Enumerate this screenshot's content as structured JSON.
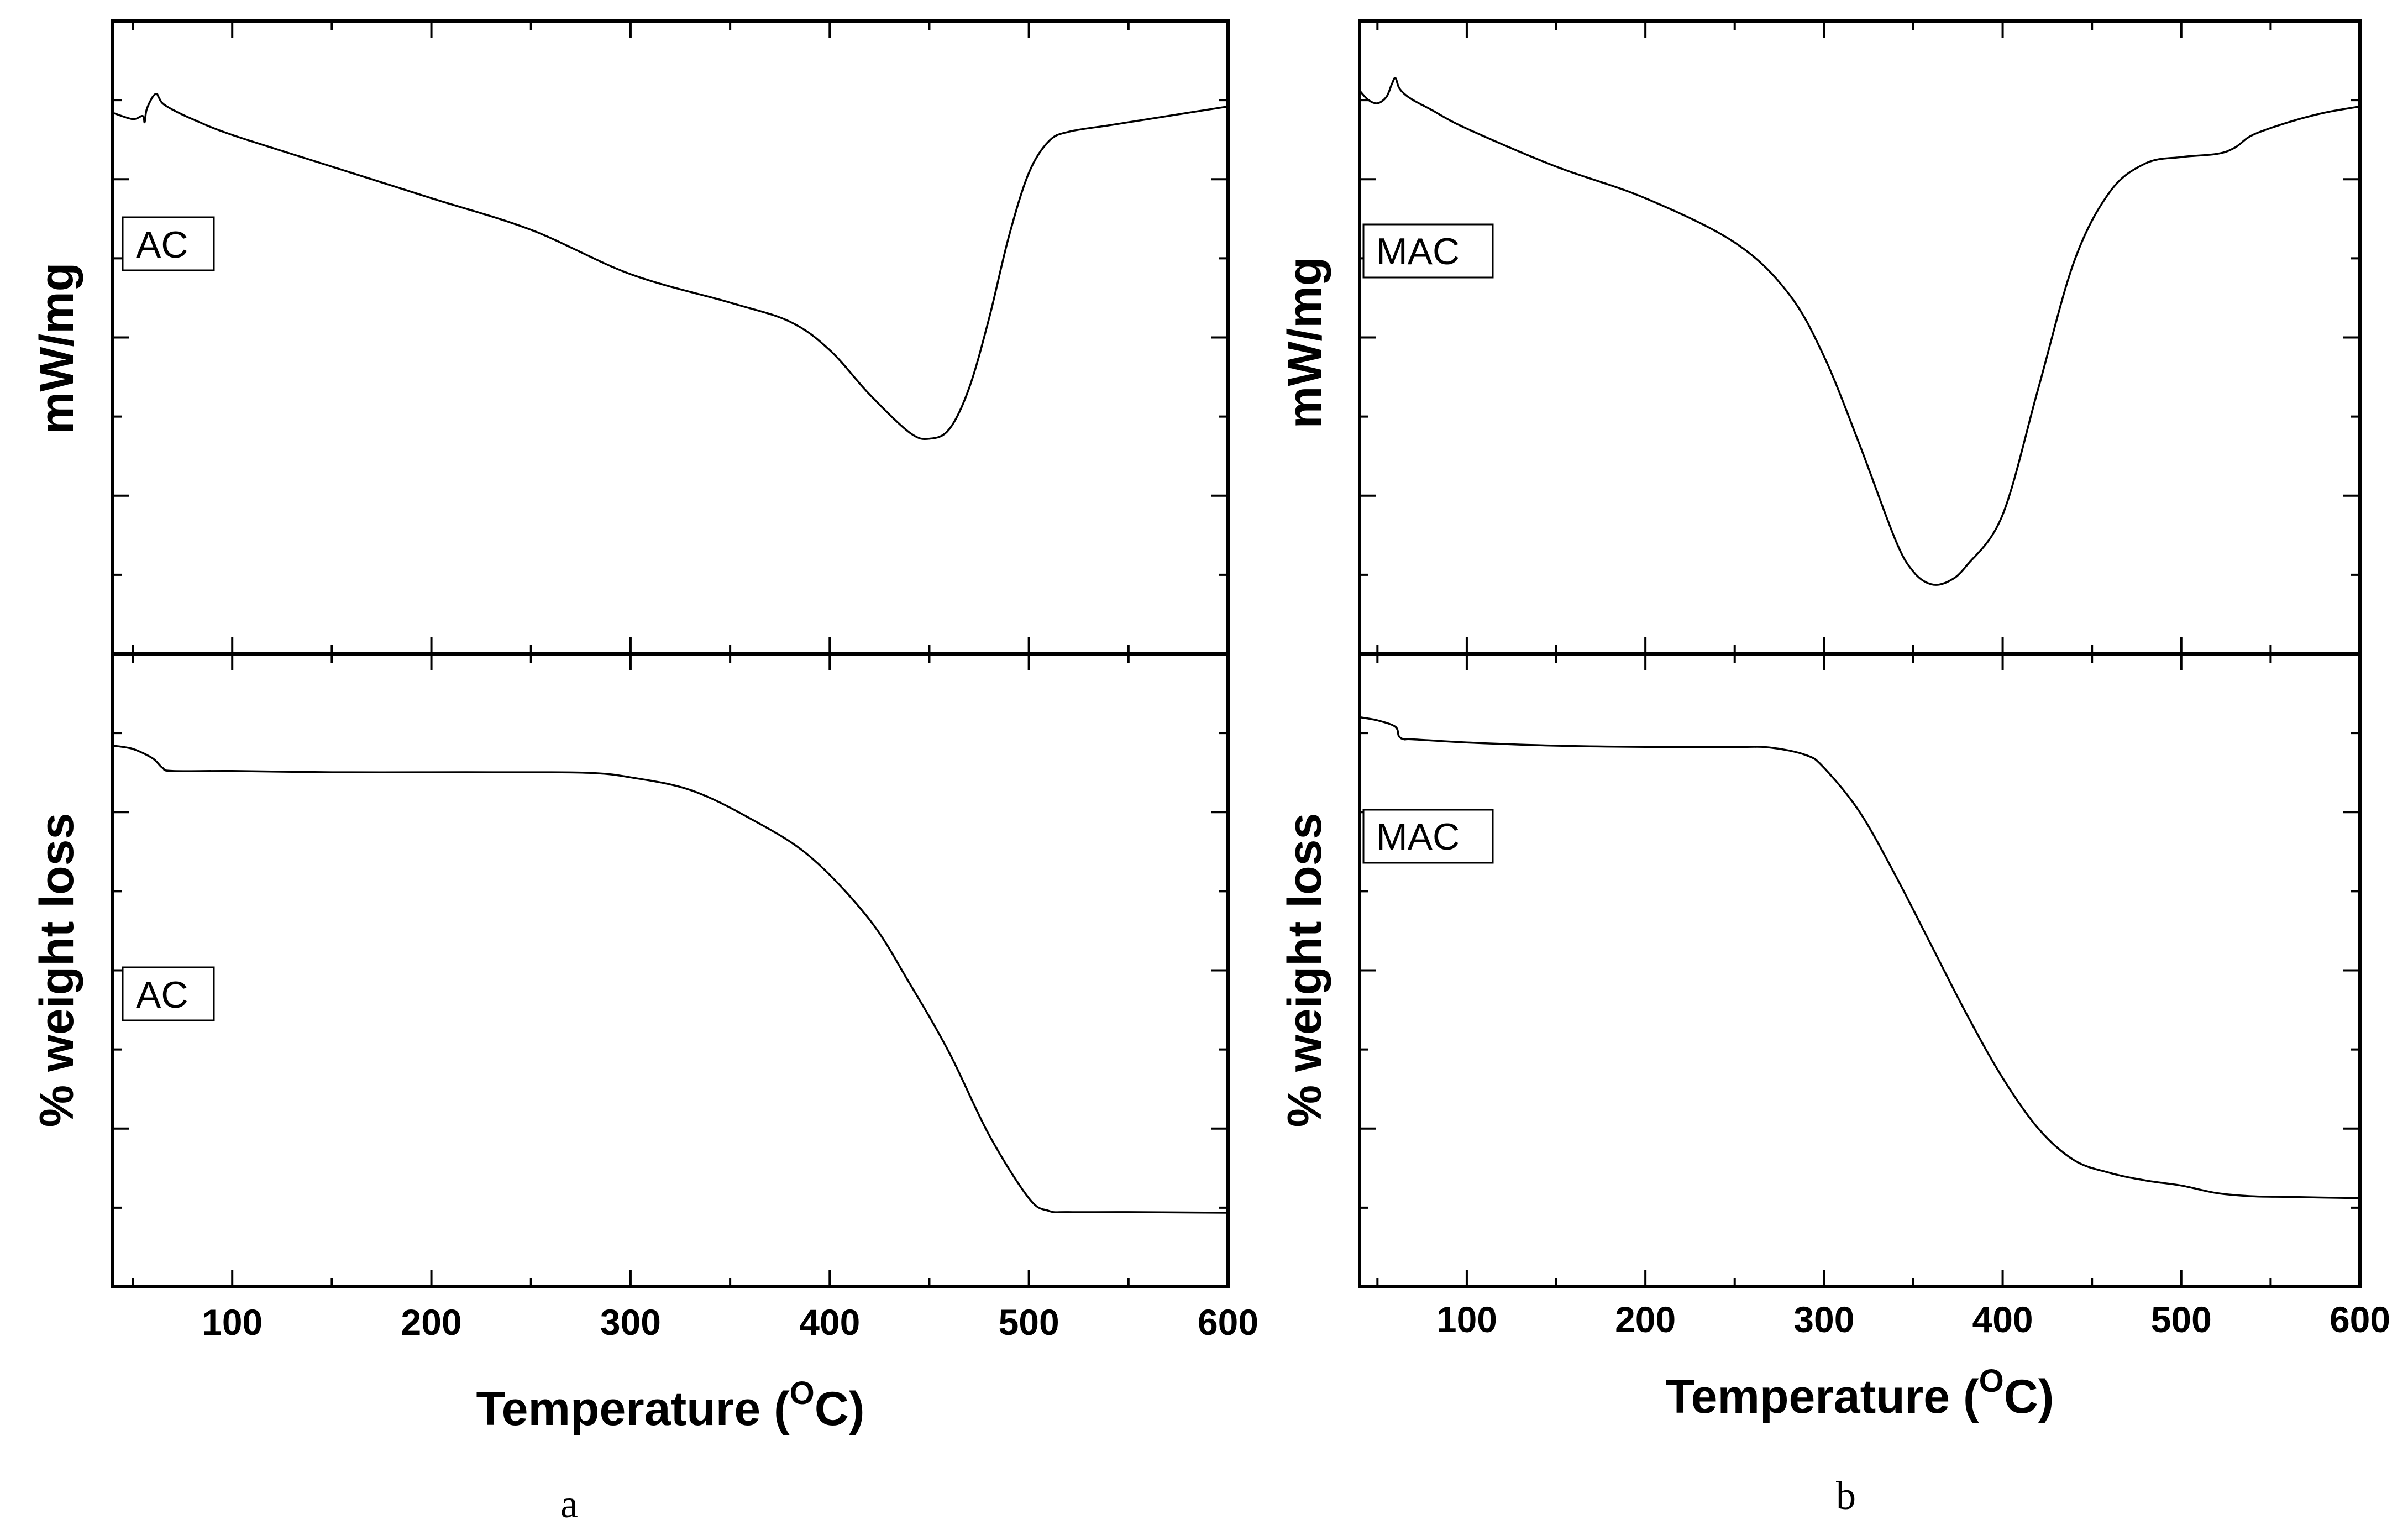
{
  "chart_data": [
    {
      "panel": "a",
      "caption": "a",
      "type": "line",
      "xlabel": "Temperature (",
      "xlabel_sup": "O",
      "xlabel_unit": "C)",
      "xlim": [
        40,
        600
      ],
      "xticks": [
        100,
        200,
        300,
        400,
        500,
        600
      ],
      "xtick_labels": [
        "100",
        "200",
        "300",
        "400",
        "500",
        "600"
      ],
      "subplots": [
        {
          "id": "dsc",
          "ylabel": "mW/mg",
          "legend": "AC",
          "ylim": [
            0,
            1
          ],
          "x": [
            40,
            50,
            55,
            56,
            57,
            60,
            62,
            63,
            65,
            70,
            80,
            100,
            150,
            200,
            250,
            300,
            350,
            380,
            400,
            420,
            440,
            450,
            460,
            470,
            480,
            490,
            500,
            510,
            520,
            540,
            560,
            580,
            600
          ],
          "y": [
            0.855,
            0.845,
            0.85,
            0.84,
            0.86,
            0.88,
            0.885,
            0.88,
            0.87,
            0.86,
            0.845,
            0.82,
            0.77,
            0.72,
            0.67,
            0.6,
            0.555,
            0.525,
            0.48,
            0.41,
            0.35,
            0.34,
            0.355,
            0.42,
            0.53,
            0.66,
            0.76,
            0.81,
            0.825,
            0.835,
            0.845,
            0.855,
            0.865
          ]
        },
        {
          "id": "tga",
          "ylabel": "% weight loss",
          "legend": "AC",
          "ylim": [
            0,
            1
          ],
          "x": [
            40,
            50,
            60,
            65,
            70,
            100,
            150,
            200,
            250,
            280,
            300,
            330,
            360,
            390,
            420,
            440,
            460,
            480,
            500,
            510,
            520,
            550,
            600
          ],
          "y": [
            0.855,
            0.85,
            0.835,
            0.82,
            0.815,
            0.815,
            0.813,
            0.813,
            0.813,
            0.812,
            0.805,
            0.785,
            0.74,
            0.68,
            0.58,
            0.48,
            0.37,
            0.24,
            0.14,
            0.12,
            0.118,
            0.118,
            0.117
          ]
        }
      ]
    },
    {
      "panel": "b",
      "caption": "b",
      "type": "line",
      "xlabel": "Temperature (",
      "xlabel_sup": "O",
      "xlabel_unit": "C)",
      "xlim": [
        40,
        600
      ],
      "xticks": [
        100,
        200,
        300,
        400,
        500,
        600
      ],
      "xtick_labels": [
        "100",
        "200",
        "300",
        "400",
        "500",
        "600"
      ],
      "subplots": [
        {
          "id": "dsc",
          "ylabel": "mW/mg",
          "legend": "MAC",
          "ylim": [
            0,
            1
          ],
          "x": [
            40,
            45,
            50,
            55,
            58,
            60,
            62,
            65,
            70,
            80,
            100,
            150,
            200,
            250,
            280,
            300,
            320,
            340,
            350,
            360,
            370,
            380,
            400,
            420,
            440,
            460,
            480,
            500,
            520,
            530,
            540,
            560,
            580,
            600
          ],
          "y": [
            0.89,
            0.875,
            0.87,
            0.88,
            0.9,
            0.91,
            0.895,
            0.885,
            0.875,
            0.86,
            0.83,
            0.77,
            0.72,
            0.65,
            0.57,
            0.47,
            0.33,
            0.18,
            0.13,
            0.11,
            0.115,
            0.14,
            0.22,
            0.42,
            0.62,
            0.73,
            0.775,
            0.785,
            0.79,
            0.8,
            0.82,
            0.84,
            0.855,
            0.865
          ]
        },
        {
          "id": "tga",
          "ylabel": "% weight loss",
          "legend": "MAC",
          "ylim": [
            0,
            1
          ],
          "x": [
            40,
            50,
            60,
            62,
            65,
            70,
            100,
            150,
            200,
            250,
            270,
            290,
            300,
            320,
            340,
            360,
            380,
            400,
            420,
            440,
            460,
            480,
            500,
            520,
            540,
            560,
            580,
            600
          ],
          "y": [
            0.9,
            0.895,
            0.885,
            0.87,
            0.865,
            0.865,
            0.86,
            0.855,
            0.853,
            0.853,
            0.852,
            0.84,
            0.82,
            0.75,
            0.65,
            0.54,
            0.43,
            0.33,
            0.25,
            0.2,
            0.18,
            0.168,
            0.16,
            0.148,
            0.143,
            0.142,
            0.141,
            0.14
          ]
        }
      ]
    }
  ]
}
